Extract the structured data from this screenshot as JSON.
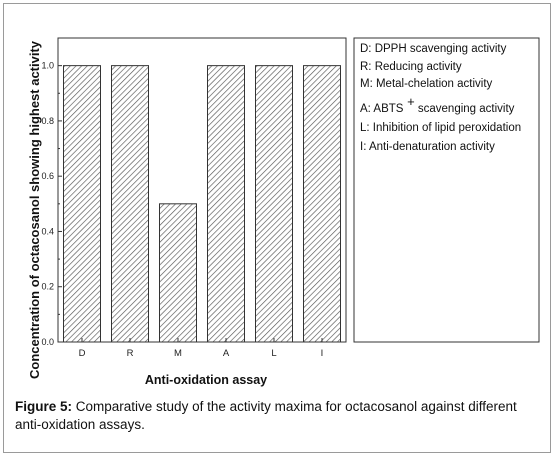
{
  "chart_data": {
    "type": "bar",
    "categories": [
      "D",
      "R",
      "M",
      "A",
      "L",
      "I"
    ],
    "values": [
      1.0,
      1.0,
      0.5,
      1.0,
      1.0,
      1.0
    ],
    "xlabel": "Anti-oxidation assay",
    "ylabel": "Concentration of octacosanol showing highest activity",
    "ylim": [
      0,
      1.1
    ],
    "yticks": [
      "0.0",
      "0.2",
      "0.4",
      "0.6",
      "0.8",
      "1.0"
    ],
    "legend_position": "top-right",
    "legend": [
      "D: DPPH scavenging activity",
      "R: Reducing activity",
      "M: Metal-chelation activity",
      "A: ABTS",
      "L: Inhibition of lipid peroxidation",
      "I: Anti-denaturation activity"
    ],
    "legend_superscript": "+",
    "legend_suffix": " scavenging activity",
    "bar_pattern": "diagonal hatch"
  },
  "caption": {
    "label": "Figure 5:",
    "text": " Comparative study of the activity maxima for octacosanol against different anti-oxidation assays."
  }
}
